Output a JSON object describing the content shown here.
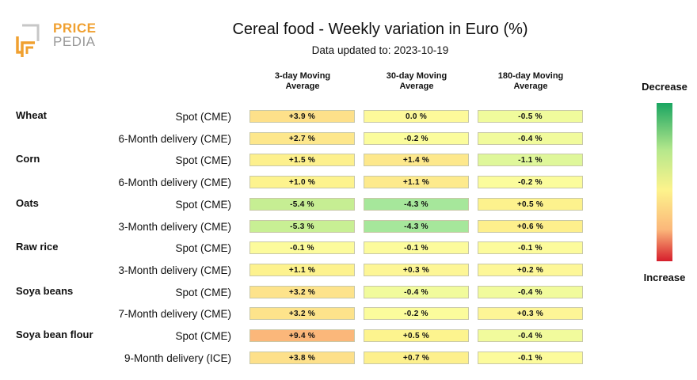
{
  "brand": {
    "line1": "PRICE",
    "line2": "PEDIA"
  },
  "header": {
    "title": "Cereal food - Weekly variation in Euro (%)",
    "subtitle": "Data updated to: 2023-10-19"
  },
  "legend": {
    "top": "Decrease",
    "bottom": "Increase"
  },
  "chart_data": {
    "type": "table",
    "title": "Cereal food - Weekly variation in Euro (%)",
    "columns": [
      "3-day Moving Average",
      "30-day Moving Average",
      "180-day Moving Average"
    ],
    "groups": [
      "Wheat",
      "Corn",
      "Oats",
      "Raw rice",
      "Soya beans",
      "Soya bean flour"
    ],
    "rows": [
      {
        "group": "Wheat",
        "label": "Spot (CME)",
        "values": [
          3.9,
          0.0,
          -0.5
        ],
        "display": [
          "+3.9 %",
          "0.0 %",
          "-0.5 %"
        ],
        "colors": [
          "#fde08a",
          "#fdf99a",
          "#f0fb9c"
        ]
      },
      {
        "group": "",
        "label": "6-Month delivery (CME)",
        "values": [
          2.7,
          -0.2,
          -0.4
        ],
        "display": [
          "+2.7 %",
          "-0.2 %",
          "-0.4 %"
        ],
        "colors": [
          "#fde78c",
          "#fbfc9c",
          "#f1fb9c"
        ]
      },
      {
        "group": "Corn",
        "label": "Spot (CME)",
        "values": [
          1.5,
          1.4,
          -1.1
        ],
        "display": [
          "+1.5 %",
          "+1.4 %",
          "-1.1 %"
        ],
        "colors": [
          "#fdf08d",
          "#fde88c",
          "#dff79a"
        ]
      },
      {
        "group": "",
        "label": "6-Month delivery (CME)",
        "values": [
          1.0,
          1.1,
          -0.2
        ],
        "display": [
          "+1.0 %",
          "+1.1 %",
          "-0.2 %"
        ],
        "colors": [
          "#fdf38e",
          "#fdea8c",
          "#fbfc9c"
        ]
      },
      {
        "group": "Oats",
        "label": "Spot (CME)",
        "values": [
          -5.4,
          -4.3,
          0.5
        ],
        "display": [
          "-5.4 %",
          "-4.3 %",
          "+0.5 %"
        ],
        "colors": [
          "#c6ee93",
          "#a6e79b",
          "#fdf28d"
        ]
      },
      {
        "group": "",
        "label": "3-Month delivery (CME)",
        "values": [
          -5.3,
          -4.3,
          0.6
        ],
        "display": [
          "-5.3 %",
          "-4.3 %",
          "+0.6 %"
        ],
        "colors": [
          "#c8ef94",
          "#a6e79b",
          "#fdef8c"
        ]
      },
      {
        "group": "Raw rice",
        "label": "Spot (CME)",
        "values": [
          -0.1,
          -0.1,
          -0.1
        ],
        "display": [
          "-0.1 %",
          "-0.1 %",
          "-0.1 %"
        ],
        "colors": [
          "#fcfb9c",
          "#fcfb9c",
          "#fcfb9c"
        ]
      },
      {
        "group": "",
        "label": "3-Month delivery (CME)",
        "values": [
          1.1,
          0.3,
          0.2
        ],
        "display": [
          "+1.1 %",
          "+0.3 %",
          "+0.2 %"
        ],
        "colors": [
          "#fdf28e",
          "#fdf696",
          "#fdf798"
        ]
      },
      {
        "group": "Soya beans",
        "label": "Spot (CME)",
        "values": [
          3.2,
          -0.4,
          -0.4
        ],
        "display": [
          "+3.2 %",
          "-0.4 %",
          "-0.4 %"
        ],
        "colors": [
          "#fde38b",
          "#f1fb9c",
          "#f1fb9c"
        ]
      },
      {
        "group": "",
        "label": "7-Month delivery (CME)",
        "values": [
          3.2,
          -0.2,
          0.3
        ],
        "display": [
          "+3.2 %",
          "-0.2 %",
          "+0.3 %"
        ],
        "colors": [
          "#fde38b",
          "#fbfc9c",
          "#fdf596"
        ]
      },
      {
        "group": "Soya bean flour",
        "label": "Spot (CME)",
        "values": [
          9.4,
          0.5,
          -0.4
        ],
        "display": [
          "+9.4 %",
          "+0.5 %",
          "-0.4 %"
        ],
        "colors": [
          "#fbb77a",
          "#fdf48e",
          "#f1fb9c"
        ]
      },
      {
        "group": "",
        "label": "9-Month delivery (ICE)",
        "values": [
          3.8,
          0.7,
          -0.1
        ],
        "display": [
          "+3.8 %",
          "+0.7 %",
          "-0.1 %"
        ],
        "colors": [
          "#fde08a",
          "#fdf08d",
          "#fcfb9c"
        ]
      }
    ]
  }
}
